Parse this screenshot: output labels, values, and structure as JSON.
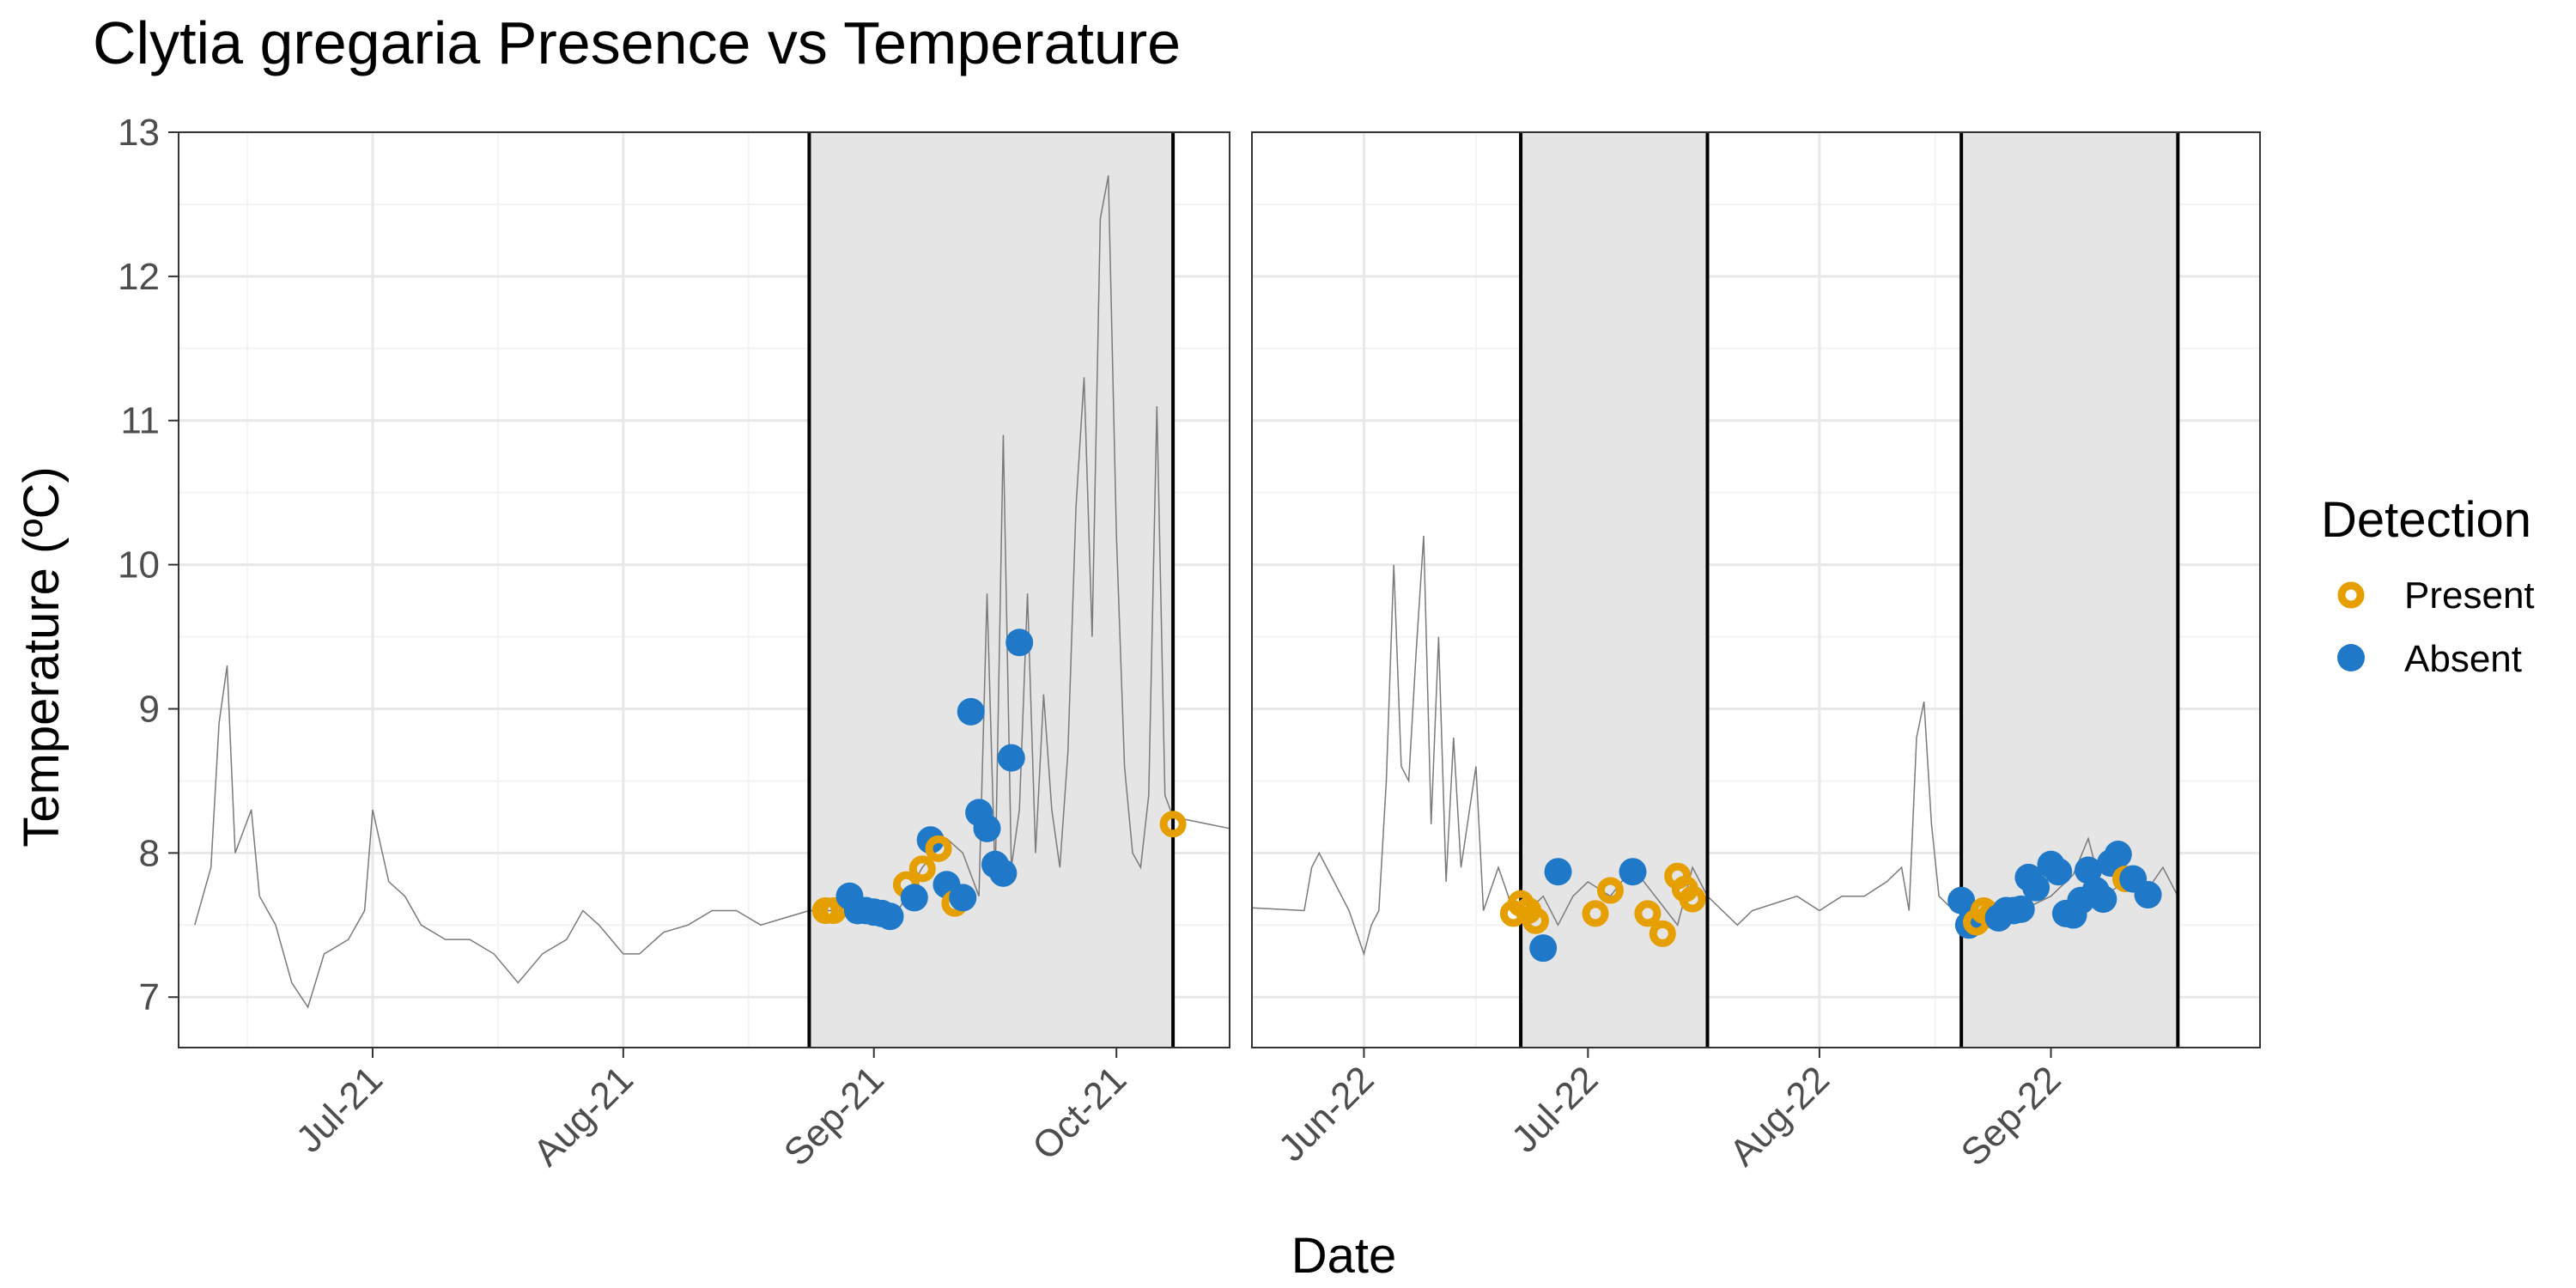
{
  "chart_data": {
    "type": "scatter",
    "title": "Clytia gregaria Presence vs Temperature",
    "xlabel": "Date",
    "ylabel": "Temperature (ºC)",
    "ylim": [
      6.65,
      13
    ],
    "yticks": [
      7,
      8,
      9,
      10,
      11,
      12,
      13
    ],
    "grid": true,
    "legend": {
      "title": "Detection",
      "placement": "right",
      "entries": [
        {
          "name": "Present",
          "color": "#E69F00",
          "marker": "ring"
        },
        {
          "name": "Absent",
          "color": "#1F78C8",
          "marker": "dot"
        }
      ]
    },
    "panels": [
      {
        "xlim": [
          "2021-06-07",
          "2021-10-15"
        ],
        "xticks": [
          "2021-07-01",
          "2021-08-01",
          "2021-09-01",
          "2021-10-01"
        ],
        "xtick_labels": [
          "Jul-21",
          "Aug-21",
          "Sep-21",
          "Oct-21"
        ],
        "shaded_periods": [
          [
            "2021-08-24",
            "2021-10-08"
          ]
        ],
        "temperature_series": [
          [
            "2021-06-09",
            7.5
          ],
          [
            "2021-06-11",
            7.9
          ],
          [
            "2021-06-12",
            8.9
          ],
          [
            "2021-06-13",
            9.3
          ],
          [
            "2021-06-14",
            8.0
          ],
          [
            "2021-06-16",
            8.3
          ],
          [
            "2021-06-17",
            7.7
          ],
          [
            "2021-06-19",
            7.5
          ],
          [
            "2021-06-21",
            7.1
          ],
          [
            "2021-06-23",
            6.93
          ],
          [
            "2021-06-25",
            7.3
          ],
          [
            "2021-06-28",
            7.4
          ],
          [
            "2021-06-30",
            7.6
          ],
          [
            "2021-07-01",
            8.3
          ],
          [
            "2021-07-03",
            7.8
          ],
          [
            "2021-07-05",
            7.7
          ],
          [
            "2021-07-07",
            7.5
          ],
          [
            "2021-07-10",
            7.4
          ],
          [
            "2021-07-13",
            7.4
          ],
          [
            "2021-07-16",
            7.3
          ],
          [
            "2021-07-19",
            7.1
          ],
          [
            "2021-07-22",
            7.3
          ],
          [
            "2021-07-25",
            7.4
          ],
          [
            "2021-07-27",
            7.6
          ],
          [
            "2021-07-29",
            7.5
          ],
          [
            "2021-08-01",
            7.3
          ],
          [
            "2021-08-03",
            7.3
          ],
          [
            "2021-08-06",
            7.45
          ],
          [
            "2021-08-09",
            7.5
          ],
          [
            "2021-08-12",
            7.6
          ],
          [
            "2021-08-15",
            7.6
          ],
          [
            "2021-08-18",
            7.5
          ],
          [
            "2021-08-21",
            7.55
          ],
          [
            "2021-08-24",
            7.6
          ],
          [
            "2021-08-27",
            7.6
          ],
          [
            "2021-08-31",
            7.6
          ],
          [
            "2021-09-04",
            7.6
          ],
          [
            "2021-09-07",
            7.9
          ],
          [
            "2021-09-10",
            8.1
          ],
          [
            "2021-09-12",
            8.0
          ],
          [
            "2021-09-14",
            7.7
          ],
          [
            "2021-09-15",
            9.8
          ],
          [
            "2021-09-16",
            7.8
          ],
          [
            "2021-09-17",
            10.9
          ],
          [
            "2021-09-18",
            7.9
          ],
          [
            "2021-09-19",
            8.3
          ],
          [
            "2021-09-20",
            9.8
          ],
          [
            "2021-09-21",
            8.0
          ],
          [
            "2021-09-22",
            9.1
          ],
          [
            "2021-09-23",
            8.3
          ],
          [
            "2021-09-24",
            7.9
          ],
          [
            "2021-09-25",
            8.7
          ],
          [
            "2021-09-26",
            10.4
          ],
          [
            "2021-09-27",
            11.3
          ],
          [
            "2021-09-28",
            9.5
          ],
          [
            "2021-09-29",
            12.4
          ],
          [
            "2021-09-30",
            12.7
          ],
          [
            "2021-10-01",
            10.2
          ],
          [
            "2021-10-02",
            8.6
          ],
          [
            "2021-10-03",
            8.0
          ],
          [
            "2021-10-04",
            7.9
          ],
          [
            "2021-10-05",
            8.4
          ],
          [
            "2021-10-06",
            11.1
          ],
          [
            "2021-10-07",
            8.4
          ],
          [
            "2021-10-08",
            8.25
          ],
          [
            "2021-10-15",
            8.17
          ]
        ],
        "points": [
          {
            "date": "2021-08-26",
            "temp": 7.6,
            "detection": "Present"
          },
          {
            "date": "2021-08-27",
            "temp": 7.6,
            "detection": "Present"
          },
          {
            "date": "2021-08-29",
            "temp": 7.7,
            "detection": "Absent"
          },
          {
            "date": "2021-08-30",
            "temp": 7.6,
            "detection": "Absent"
          },
          {
            "date": "2021-08-31",
            "temp": 7.6,
            "detection": "Absent"
          },
          {
            "date": "2021-09-01",
            "temp": 7.59,
            "detection": "Absent"
          },
          {
            "date": "2021-09-02",
            "temp": 7.58,
            "detection": "Absent"
          },
          {
            "date": "2021-09-03",
            "temp": 7.56,
            "detection": "Absent"
          },
          {
            "date": "2021-09-05",
            "temp": 7.78,
            "detection": "Present"
          },
          {
            "date": "2021-09-06",
            "temp": 7.69,
            "detection": "Absent"
          },
          {
            "date": "2021-09-07",
            "temp": 7.89,
            "detection": "Present"
          },
          {
            "date": "2021-09-08",
            "temp": 8.09,
            "detection": "Absent"
          },
          {
            "date": "2021-09-09",
            "temp": 8.03,
            "detection": "Present"
          },
          {
            "date": "2021-09-10",
            "temp": 7.78,
            "detection": "Absent"
          },
          {
            "date": "2021-09-11",
            "temp": 7.65,
            "detection": "Present"
          },
          {
            "date": "2021-09-12",
            "temp": 7.69,
            "detection": "Absent"
          },
          {
            "date": "2021-09-13",
            "temp": 8.98,
            "detection": "Absent"
          },
          {
            "date": "2021-09-14",
            "temp": 8.28,
            "detection": "Absent"
          },
          {
            "date": "2021-09-15",
            "temp": 8.17,
            "detection": "Absent"
          },
          {
            "date": "2021-09-16",
            "temp": 7.92,
            "detection": "Absent"
          },
          {
            "date": "2021-09-17",
            "temp": 7.86,
            "detection": "Absent"
          },
          {
            "date": "2021-09-18",
            "temp": 8.66,
            "detection": "Absent"
          },
          {
            "date": "2021-09-19",
            "temp": 9.46,
            "detection": "Absent"
          },
          {
            "date": "2021-10-08",
            "temp": 8.2,
            "detection": "Present"
          }
        ]
      },
      {
        "xlim": [
          "2022-05-17",
          "2022-09-29"
        ],
        "xticks": [
          "2022-06-01",
          "2022-07-01",
          "2022-08-01",
          "2022-09-01"
        ],
        "xtick_labels": [
          "Jun-22",
          "Jul-22",
          "Aug-22",
          "Sep-22"
        ],
        "shaded_periods": [
          [
            "2022-06-22",
            "2022-07-17"
          ],
          [
            "2022-08-20",
            "2022-09-18"
          ]
        ],
        "temperature_series": [
          [
            "2022-05-17",
            7.62
          ],
          [
            "2022-05-24",
            7.6
          ],
          [
            "2022-05-25",
            7.9
          ],
          [
            "2022-05-26",
            8.0
          ],
          [
            "2022-05-28",
            7.8
          ],
          [
            "2022-05-30",
            7.6
          ],
          [
            "2022-06-01",
            7.3
          ],
          [
            "2022-06-02",
            7.5
          ],
          [
            "2022-06-03",
            7.6
          ],
          [
            "2022-06-04",
            8.5
          ],
          [
            "2022-06-05",
            10.0
          ],
          [
            "2022-06-06",
            8.6
          ],
          [
            "2022-06-07",
            8.5
          ],
          [
            "2022-06-08",
            9.4
          ],
          [
            "2022-06-09",
            10.2
          ],
          [
            "2022-06-10",
            8.2
          ],
          [
            "2022-06-11",
            9.5
          ],
          [
            "2022-06-12",
            7.8
          ],
          [
            "2022-06-13",
            8.8
          ],
          [
            "2022-06-14",
            7.9
          ],
          [
            "2022-06-16",
            8.6
          ],
          [
            "2022-06-17",
            7.6
          ],
          [
            "2022-06-19",
            7.9
          ],
          [
            "2022-06-21",
            7.6
          ],
          [
            "2022-06-23",
            7.6
          ],
          [
            "2022-06-25",
            7.7
          ],
          [
            "2022-06-27",
            7.5
          ],
          [
            "2022-06-29",
            7.7
          ],
          [
            "2022-07-01",
            7.8
          ],
          [
            "2022-07-04",
            7.7
          ],
          [
            "2022-07-07",
            7.9
          ],
          [
            "2022-07-10",
            7.7
          ],
          [
            "2022-07-13",
            7.5
          ],
          [
            "2022-07-15",
            7.9
          ],
          [
            "2022-07-17",
            7.7
          ],
          [
            "2022-07-19",
            7.6
          ],
          [
            "2022-07-21",
            7.5
          ],
          [
            "2022-07-23",
            7.6
          ],
          [
            "2022-07-26",
            7.65
          ],
          [
            "2022-07-29",
            7.7
          ],
          [
            "2022-08-01",
            7.6
          ],
          [
            "2022-08-04",
            7.7
          ],
          [
            "2022-08-07",
            7.7
          ],
          [
            "2022-08-10",
            7.8
          ],
          [
            "2022-08-12",
            7.9
          ],
          [
            "2022-08-13",
            7.6
          ],
          [
            "2022-08-14",
            8.8
          ],
          [
            "2022-08-15",
            9.05
          ],
          [
            "2022-08-16",
            8.2
          ],
          [
            "2022-08-17",
            7.7
          ],
          [
            "2022-08-19",
            7.6
          ],
          [
            "2022-08-21",
            7.6
          ],
          [
            "2022-08-24",
            7.55
          ],
          [
            "2022-08-28",
            7.6
          ],
          [
            "2022-09-01",
            7.7
          ],
          [
            "2022-09-04",
            7.85
          ],
          [
            "2022-09-06",
            8.1
          ],
          [
            "2022-09-08",
            7.7
          ],
          [
            "2022-09-11",
            7.8
          ],
          [
            "2022-09-14",
            7.75
          ],
          [
            "2022-09-16",
            7.9
          ],
          [
            "2022-09-18",
            7.7
          ]
        ],
        "points": [
          {
            "date": "2022-06-21",
            "temp": 7.58,
            "detection": "Present"
          },
          {
            "date": "2022-06-22",
            "temp": 7.65,
            "detection": "Present"
          },
          {
            "date": "2022-06-23",
            "temp": 7.6,
            "detection": "Present"
          },
          {
            "date": "2022-06-24",
            "temp": 7.53,
            "detection": "Present"
          },
          {
            "date": "2022-06-25",
            "temp": 7.34,
            "detection": "Absent"
          },
          {
            "date": "2022-06-27",
            "temp": 7.87,
            "detection": "Absent"
          },
          {
            "date": "2022-07-02",
            "temp": 7.58,
            "detection": "Present"
          },
          {
            "date": "2022-07-04",
            "temp": 7.74,
            "detection": "Present"
          },
          {
            "date": "2022-07-07",
            "temp": 7.87,
            "detection": "Absent"
          },
          {
            "date": "2022-07-09",
            "temp": 7.58,
            "detection": "Present"
          },
          {
            "date": "2022-07-11",
            "temp": 7.44,
            "detection": "Present"
          },
          {
            "date": "2022-07-13",
            "temp": 7.84,
            "detection": "Present"
          },
          {
            "date": "2022-07-14",
            "temp": 7.75,
            "detection": "Present"
          },
          {
            "date": "2022-07-15",
            "temp": 7.68,
            "detection": "Present"
          },
          {
            "date": "2022-08-20",
            "temp": 7.67,
            "detection": "Absent"
          },
          {
            "date": "2022-08-21",
            "temp": 7.5,
            "detection": "Absent"
          },
          {
            "date": "2022-08-22",
            "temp": 7.52,
            "detection": "Present"
          },
          {
            "date": "2022-08-23",
            "temp": 7.6,
            "detection": "Present"
          },
          {
            "date": "2022-08-24",
            "temp": 7.57,
            "detection": "Present"
          },
          {
            "date": "2022-08-25",
            "temp": 7.55,
            "detection": "Absent"
          },
          {
            "date": "2022-08-26",
            "temp": 7.6,
            "detection": "Absent"
          },
          {
            "date": "2022-08-27",
            "temp": 7.6,
            "detection": "Absent"
          },
          {
            "date": "2022-08-28",
            "temp": 7.61,
            "detection": "Absent"
          },
          {
            "date": "2022-08-29",
            "temp": 7.83,
            "detection": "Absent"
          },
          {
            "date": "2022-08-30",
            "temp": 7.76,
            "detection": "Absent"
          },
          {
            "date": "2022-09-01",
            "temp": 7.92,
            "detection": "Absent"
          },
          {
            "date": "2022-09-02",
            "temp": 7.87,
            "detection": "Absent"
          },
          {
            "date": "2022-09-03",
            "temp": 7.58,
            "detection": "Absent"
          },
          {
            "date": "2022-09-04",
            "temp": 7.57,
            "detection": "Absent"
          },
          {
            "date": "2022-09-05",
            "temp": 7.67,
            "detection": "Absent"
          },
          {
            "date": "2022-09-06",
            "temp": 7.88,
            "detection": "Absent"
          },
          {
            "date": "2022-09-07",
            "temp": 7.74,
            "detection": "Absent"
          },
          {
            "date": "2022-09-08",
            "temp": 7.68,
            "detection": "Absent"
          },
          {
            "date": "2022-09-09",
            "temp": 7.93,
            "detection": "Absent"
          },
          {
            "date": "2022-09-10",
            "temp": 7.99,
            "detection": "Absent"
          },
          {
            "date": "2022-09-11",
            "temp": 7.82,
            "detection": "Present"
          },
          {
            "date": "2022-09-12",
            "temp": 7.82,
            "detection": "Absent"
          },
          {
            "date": "2022-09-14",
            "temp": 7.71,
            "detection": "Absent"
          }
        ]
      }
    ]
  }
}
